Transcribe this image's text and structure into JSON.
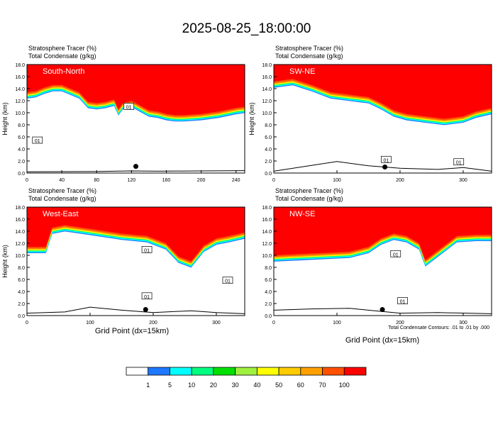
{
  "page": {
    "title": "2025-08-25_18:00:00"
  },
  "chart_data": [
    {
      "type": "heatmap",
      "panel_label": "South-North",
      "title_lines": [
        "Stratosphere Tracer   (%)",
        "Total Condensate   (g/kg)"
      ],
      "ylabel": "Height (km)",
      "xlim": [
        0,
        250
      ],
      "ylim": [
        0,
        18
      ],
      "xticks": [
        0,
        40,
        80,
        120,
        160,
        200,
        240
      ],
      "yticks": [
        0,
        2,
        4,
        6,
        8,
        10,
        12,
        14,
        16,
        18
      ],
      "tracer_boundary_km": [
        [
          0,
          13.4
        ],
        [
          10,
          13.6
        ],
        [
          20,
          14.2
        ],
        [
          30,
          14.6
        ],
        [
          40,
          14.6
        ],
        [
          50,
          14.0
        ],
        [
          60,
          13.4
        ],
        [
          65,
          12.6
        ],
        [
          70,
          11.8
        ],
        [
          80,
          11.6
        ],
        [
          90,
          11.8
        ],
        [
          100,
          12.2
        ],
        [
          105,
          10.6
        ],
        [
          110,
          11.6
        ],
        [
          120,
          12.0
        ],
        [
          130,
          11.2
        ],
        [
          140,
          10.4
        ],
        [
          150,
          10.2
        ],
        [
          160,
          9.8
        ],
        [
          170,
          9.6
        ],
        [
          180,
          9.6
        ],
        [
          200,
          9.8
        ],
        [
          220,
          10.2
        ],
        [
          240,
          10.8
        ],
        [
          250,
          11.0
        ]
      ],
      "terrain_km": [
        [
          0,
          0.2
        ],
        [
          80,
          0.25
        ],
        [
          100,
          0.3
        ],
        [
          120,
          0.35
        ],
        [
          150,
          0.3
        ],
        [
          200,
          0.35
        ],
        [
          250,
          0.4
        ]
      ],
      "contour_labels": [
        {
          "text": "01",
          "x": 12,
          "y": 5.4
        },
        {
          "text": "01",
          "x": 117,
          "y": 11.0
        }
      ],
      "marker_point": {
        "x": 125,
        "y": 1.1
      }
    },
    {
      "type": "heatmap",
      "panel_label": "SW-NE",
      "title_lines": [
        "Stratosphere Tracer   (%)",
        "Total Condensate   (g/kg)"
      ],
      "ylabel": "Height (km)",
      "xlim": [
        0,
        345
      ],
      "ylim": [
        0,
        18
      ],
      "xticks": [
        0,
        100,
        200,
        300
      ],
      "yticks": [
        0,
        2,
        4,
        6,
        8,
        10,
        12,
        14,
        16,
        18
      ],
      "tracer_boundary_km": [
        [
          0,
          15.2
        ],
        [
          30,
          15.6
        ],
        [
          60,
          14.6
        ],
        [
          90,
          13.4
        ],
        [
          120,
          13.0
        ],
        [
          150,
          12.6
        ],
        [
          170,
          11.6
        ],
        [
          190,
          10.4
        ],
        [
          210,
          9.8
        ],
        [
          240,
          9.4
        ],
        [
          270,
          9.0
        ],
        [
          300,
          9.4
        ],
        [
          320,
          10.2
        ],
        [
          345,
          10.8
        ]
      ],
      "terrain_km": [
        [
          0,
          0.3
        ],
        [
          100,
          1.9
        ],
        [
          150,
          1.2
        ],
        [
          200,
          0.8
        ],
        [
          260,
          0.6
        ],
        [
          300,
          0.9
        ],
        [
          345,
          0.3
        ]
      ],
      "contour_labels": [
        {
          "text": "01",
          "x": 178,
          "y": 2.2
        },
        {
          "text": "01",
          "x": 293,
          "y": 1.8
        }
      ],
      "marker_point": {
        "x": 176,
        "y": 1.0
      }
    },
    {
      "type": "heatmap",
      "panel_label": "West-East",
      "title_lines": [
        "Stratosphere Tracer   (%)",
        "Total Condensate   (g/kg)"
      ],
      "ylabel": "Height (km)",
      "xlim": [
        0,
        345
      ],
      "ylim": [
        0,
        18
      ],
      "xticks": [
        0,
        100,
        200,
        300
      ],
      "yticks": [
        0,
        2,
        4,
        6,
        8,
        10,
        12,
        14,
        16,
        18
      ],
      "tracer_boundary_km": [
        [
          0,
          11.4
        ],
        [
          30,
          11.4
        ],
        [
          40,
          14.6
        ],
        [
          60,
          15.0
        ],
        [
          100,
          14.4
        ],
        [
          150,
          13.6
        ],
        [
          190,
          13.2
        ],
        [
          220,
          12.0
        ],
        [
          240,
          9.8
        ],
        [
          260,
          9.0
        ],
        [
          280,
          11.6
        ],
        [
          300,
          12.8
        ],
        [
          320,
          13.2
        ],
        [
          345,
          13.8
        ]
      ],
      "terrain_km": [
        [
          0,
          0.4
        ],
        [
          60,
          0.6
        ],
        [
          100,
          1.4
        ],
        [
          150,
          0.9
        ],
        [
          200,
          0.5
        ],
        [
          260,
          0.8
        ],
        [
          300,
          0.5
        ],
        [
          345,
          0.3
        ]
      ],
      "contour_labels": [
        {
          "text": "01",
          "x": 190,
          "y": 10.9
        },
        {
          "text": "01",
          "x": 190,
          "y": 3.2
        },
        {
          "text": "01",
          "x": 318,
          "y": 5.8
        }
      ],
      "marker_point": {
        "x": 188,
        "y": 1.0
      }
    },
    {
      "type": "heatmap",
      "panel_label": "NW-SE",
      "title_lines": [
        "Stratosphere Tracer   (%)",
        "Total Condensate   (g/kg)"
      ],
      "ylabel": "",
      "xlabel": "Grid Point (dx=15km)",
      "xlim": [
        0,
        345
      ],
      "ylim": [
        0,
        18
      ],
      "xticks": [
        0,
        100,
        200,
        300
      ],
      "yticks": [
        0,
        2,
        4,
        6,
        8,
        10,
        12,
        14,
        16,
        18
      ],
      "tracer_boundary_km": [
        [
          0,
          10.0
        ],
        [
          40,
          10.2
        ],
        [
          80,
          10.4
        ],
        [
          120,
          10.6
        ],
        [
          150,
          11.4
        ],
        [
          170,
          12.8
        ],
        [
          190,
          13.6
        ],
        [
          210,
          13.2
        ],
        [
          230,
          12.0
        ],
        [
          240,
          9.2
        ],
        [
          260,
          10.8
        ],
        [
          290,
          13.2
        ],
        [
          320,
          13.4
        ],
        [
          345,
          13.4
        ]
      ],
      "terrain_km": [
        [
          0,
          0.9
        ],
        [
          60,
          1.1
        ],
        [
          120,
          1.2
        ],
        [
          160,
          0.8
        ],
        [
          200,
          0.4
        ],
        [
          260,
          0.5
        ],
        [
          345,
          0.3
        ]
      ],
      "contour_labels": [
        {
          "text": "01",
          "x": 193,
          "y": 10.2
        },
        {
          "text": "01",
          "x": 204,
          "y": 2.4
        }
      ],
      "marker_point": {
        "x": 172,
        "y": 1.0
      }
    }
  ],
  "shared": {
    "xlabel_left": "Grid Point (dx=15km)",
    "xlabel_right": "Grid Point (dx=15km)",
    "contour_note": "Total Condensate Contours: .01 to .01 by .000"
  },
  "colorbar": {
    "colors": [
      "#ffffff",
      "#1e78ff",
      "#00ffff",
      "#00ff80",
      "#00e000",
      "#a0f040",
      "#ffff00",
      "#ffcc00",
      "#ffa000",
      "#ff5000",
      "#ff0000"
    ],
    "labels": [
      "1",
      "5",
      "10",
      "20",
      "30",
      "40",
      "50",
      "60",
      "70",
      "100"
    ]
  }
}
